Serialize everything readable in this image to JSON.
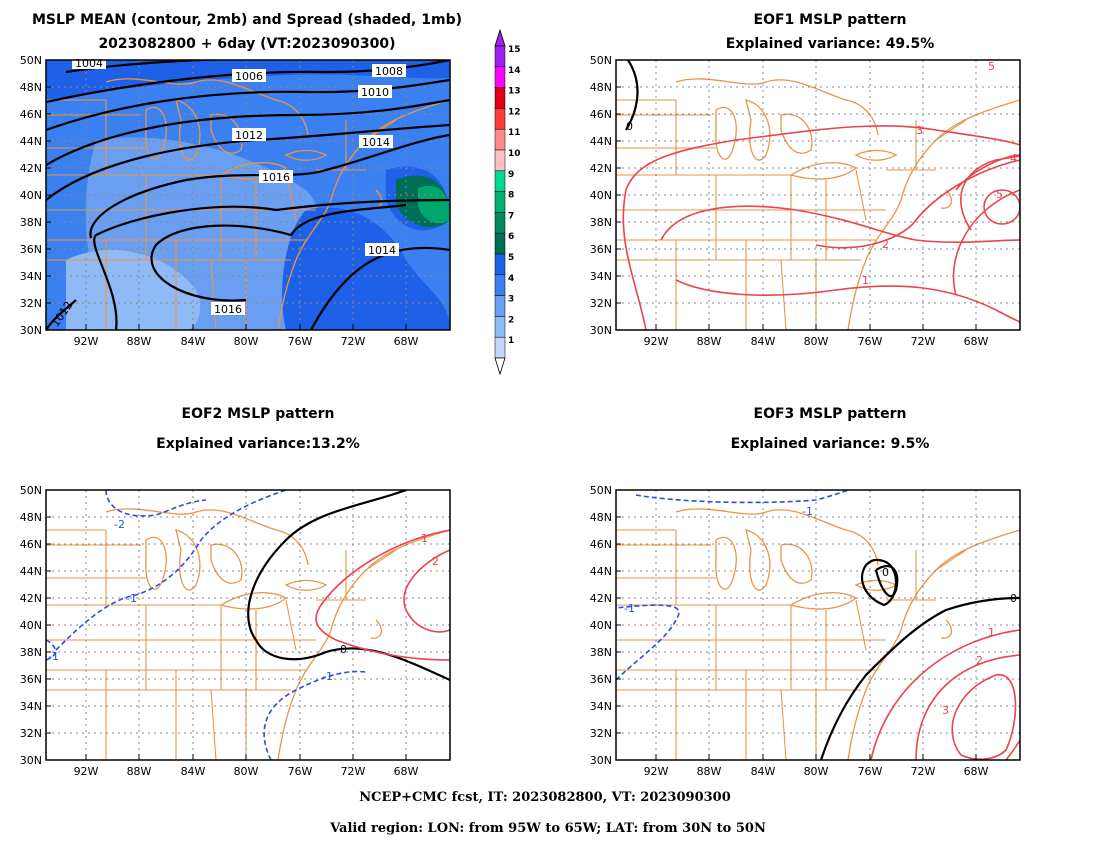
{
  "colors": {
    "coast": "#e8954a",
    "pos_contour": "#e8454e",
    "neg_contour": "#2a4fe0",
    "zero_contour": "#000000",
    "grid": "#888888"
  },
  "panels": {
    "mean": {
      "title_line1": "MSLP MEAN (contour, 2mb) and Spread (shaded, 1mb)",
      "title_line2": "2023082800 + 6day (VT:2023090300)",
      "contour_labels": [
        "1004",
        "1006",
        "1008",
        "1010",
        "1012",
        "1014",
        "1016",
        "1016",
        "1014",
        "1012"
      ]
    },
    "eof1": {
      "title_line1": "EOF1 MSLP pattern",
      "title_line2": "Explained variance: 49.5%",
      "contour_labels": [
        "0",
        "1",
        "2",
        "3",
        "4",
        "5",
        "5"
      ]
    },
    "eof2": {
      "title_line1": "EOF2 MSLP pattern",
      "title_line2": "Explained variance:13.2%",
      "contour_labels": [
        "-2",
        "-1",
        "-1",
        "-1",
        "0",
        "1",
        "2"
      ]
    },
    "eof3": {
      "title_line1": "EOF3 MSLP pattern",
      "title_line2": "Explained variance: 9.5%",
      "contour_labels": [
        "-1",
        "-1",
        "0",
        "0",
        "1",
        "2",
        "3"
      ]
    }
  },
  "axes": {
    "lat_labels": [
      "50N",
      "48N",
      "46N",
      "44N",
      "42N",
      "40N",
      "38N",
      "36N",
      "34N",
      "32N",
      "30N"
    ],
    "lon_labels": [
      "92W",
      "88W",
      "84W",
      "80W",
      "76W",
      "72W",
      "68W"
    ]
  },
  "colorbar": {
    "levels": [
      "15",
      "14",
      "13",
      "12",
      "11",
      "10",
      "9",
      "8",
      "7",
      "6",
      "5",
      "4",
      "3",
      "2",
      "1"
    ],
    "colors": [
      "#a020f0",
      "#ff00ff",
      "#e0001a",
      "#ff3a3a",
      "#ff8a8a",
      "#ffc0c0",
      "#00d890",
      "#00b070",
      "#008a60",
      "#006e56",
      "#1e60e8",
      "#3a80f0",
      "#6a9ef0",
      "#90baf5",
      "#c0d8fa"
    ]
  },
  "footer": {
    "line1": "NCEP+CMC fcst, IT: 2023082800, VT: 2023090300",
    "line2": "Valid region: LON: from 95W to 65W; LAT: from 30N to 50N"
  }
}
